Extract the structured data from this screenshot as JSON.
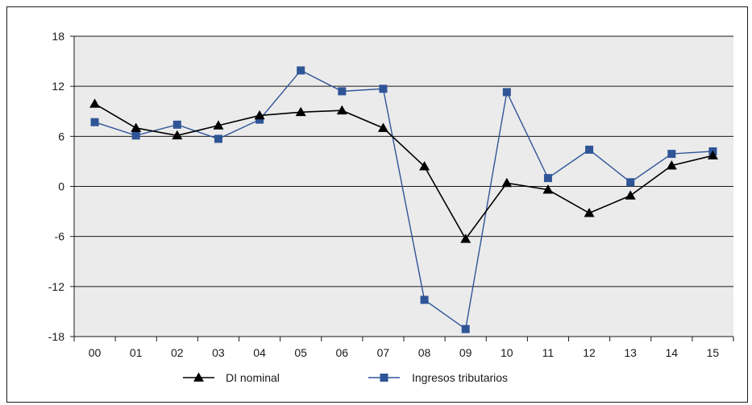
{
  "chart_data": {
    "type": "line",
    "categories": [
      "00",
      "01",
      "02",
      "03",
      "04",
      "05",
      "06",
      "07",
      "08",
      "09",
      "10",
      "11",
      "12",
      "13",
      "14",
      "15"
    ],
    "ylim": [
      -18,
      18
    ],
    "yticks": [
      18,
      12,
      6,
      0,
      -6,
      -12,
      -18
    ],
    "ytick_labels": [
      "18",
      "12",
      "6",
      "0",
      "-6",
      "-12",
      "-18"
    ],
    "grid": "horizontal",
    "background": "#ebebeb",
    "legend_position": "bottom",
    "series": [
      {
        "name": "DI nominal",
        "marker": "triangle",
        "color": "#000000",
        "values": [
          9.9,
          7.0,
          6.1,
          7.3,
          8.5,
          8.9,
          9.1,
          7.0,
          2.4,
          -6.3,
          0.4,
          -0.4,
          -3.2,
          -1.1,
          2.5,
          3.7
        ]
      },
      {
        "name": "Ingresos tributarios",
        "marker": "square",
        "color": "#2f5597",
        "values": [
          7.7,
          6.1,
          7.4,
          5.7,
          8.0,
          13.9,
          11.4,
          11.7,
          -13.6,
          -17.1,
          11.3,
          1.0,
          4.4,
          0.5,
          3.9,
          4.2
        ]
      }
    ]
  }
}
